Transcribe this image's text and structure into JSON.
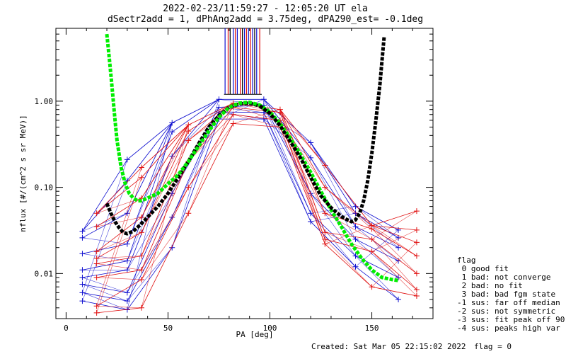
{
  "chart_data": {
    "type": "line",
    "title": "2022-02-23/11:59:27 - 12:05:20 UT ela",
    "subtitle": "dSectr2add = 1, dPhAng2add = 3.75deg, dPA290_est=  -0.1deg",
    "xlabel": "PA [deg]",
    "ylabel": "nflux [#/(cm^2 s sr MeV)]",
    "xlim": [
      -5,
      180
    ],
    "ylim": [
      0.003,
      7.0
    ],
    "yscale": "log",
    "xticks": [
      0,
      50,
      100,
      150
    ],
    "xtick_labels": [
      "0",
      "50",
      "100",
      "150"
    ],
    "yticks": [
      0.01,
      0.1,
      1.0
    ],
    "ytick_labels": [
      "0.01",
      "0.10",
      "1.00"
    ],
    "grid": false,
    "series": [
      {
        "color": "#000000",
        "style": "thick-dashed",
        "x": [
          20,
          22,
          24,
          26,
          28,
          30,
          33,
          36,
          40,
          45,
          50,
          55,
          60,
          65,
          70,
          75,
          80,
          85,
          90,
          95,
          100
        ],
        "y": [
          0.065,
          0.05,
          0.04,
          0.034,
          0.03,
          0.029,
          0.031,
          0.036,
          0.045,
          0.06,
          0.085,
          0.13,
          0.2,
          0.32,
          0.5,
          0.68,
          0.85,
          0.93,
          0.95,
          0.88,
          0.72
        ]
      },
      {
        "color": "#00ee00",
        "style": "thick-dashed",
        "x": [
          20,
          21,
          22,
          23,
          24,
          25,
          27,
          29,
          31,
          33,
          35,
          37,
          40,
          45,
          50,
          55,
          60,
          65,
          70,
          75,
          80,
          85,
          90,
          95,
          100,
          105,
          110,
          115,
          120,
          125,
          130,
          135,
          140,
          145,
          150,
          155,
          160,
          163
        ],
        "y": [
          6.0,
          3.5,
          2.0,
          1.1,
          0.6,
          0.35,
          0.17,
          0.11,
          0.085,
          0.075,
          0.07,
          0.07,
          0.075,
          0.085,
          0.11,
          0.14,
          0.2,
          0.3,
          0.45,
          0.65,
          0.85,
          0.95,
          0.97,
          0.9,
          0.75,
          0.55,
          0.37,
          0.24,
          0.15,
          0.09,
          0.055,
          0.035,
          0.022,
          0.015,
          0.011,
          0.009,
          0.0085,
          0.0083
        ]
      },
      {
        "color": "#000000",
        "style": "thick-dashed",
        "x": [
          95,
          100,
          105,
          110,
          115,
          120,
          125,
          130,
          135,
          138,
          140,
          142,
          144,
          146,
          148,
          150,
          152,
          154,
          155,
          156
        ],
        "y": [
          0.88,
          0.72,
          0.52,
          0.34,
          0.22,
          0.13,
          0.08,
          0.058,
          0.046,
          0.042,
          0.04,
          0.042,
          0.05,
          0.07,
          0.12,
          0.25,
          0.6,
          1.6,
          3.0,
          5.5
        ]
      }
    ],
    "scatter_series": [
      {
        "color": "#1010d0",
        "marker": "+",
        "points": [
          [
            8,
            0.0048
          ],
          [
            8,
            0.006
          ],
          [
            8,
            0.0075
          ],
          [
            8,
            0.009
          ],
          [
            8,
            0.011
          ],
          [
            8,
            0.017
          ],
          [
            8,
            0.026
          ],
          [
            8,
            0.031
          ],
          [
            30,
            0.0038
          ],
          [
            30,
            0.0048
          ],
          [
            30,
            0.006
          ],
          [
            30,
            0.011
          ],
          [
            30,
            0.014
          ],
          [
            30,
            0.022
          ],
          [
            30,
            0.05
          ],
          [
            30,
            0.12
          ],
          [
            30,
            0.21
          ],
          [
            52,
            0.02
          ],
          [
            52,
            0.045
          ],
          [
            52,
            0.085
          ],
          [
            52,
            0.23
          ],
          [
            52,
            0.44
          ],
          [
            52,
            0.56
          ],
          [
            75,
            0.62
          ],
          [
            75,
            0.75
          ],
          [
            75,
            0.85
          ],
          [
            75,
            1.05
          ],
          [
            97,
            0.62
          ],
          [
            97,
            0.74
          ],
          [
            97,
            0.9
          ],
          [
            97,
            1.05
          ],
          [
            120,
            0.04
          ],
          [
            120,
            0.05
          ],
          [
            120,
            0.085
          ],
          [
            120,
            0.22
          ],
          [
            120,
            0.33
          ],
          [
            142,
            0.06
          ],
          [
            142,
            0.05
          ],
          [
            142,
            0.035
          ],
          [
            142,
            0.025
          ],
          [
            142,
            0.016
          ],
          [
            142,
            0.012
          ],
          [
            163,
            0.005
          ],
          [
            163,
            0.009
          ],
          [
            163,
            0.014
          ],
          [
            163,
            0.02
          ],
          [
            163,
            0.026
          ],
          [
            163,
            0.032
          ]
        ]
      },
      {
        "color": "#e01010",
        "marker": "+",
        "points": [
          [
            15,
            0.0035
          ],
          [
            15,
            0.0042
          ],
          [
            15,
            0.009
          ],
          [
            15,
            0.013
          ],
          [
            15,
            0.015
          ],
          [
            15,
            0.018
          ],
          [
            15,
            0.035
          ],
          [
            15,
            0.05
          ],
          [
            37,
            0.004
          ],
          [
            37,
            0.0085
          ],
          [
            37,
            0.011
          ],
          [
            37,
            0.016
          ],
          [
            37,
            0.03
          ],
          [
            37,
            0.045
          ],
          [
            37,
            0.075
          ],
          [
            37,
            0.13
          ],
          [
            37,
            0.17
          ],
          [
            60,
            0.05
          ],
          [
            60,
            0.1
          ],
          [
            60,
            0.2
          ],
          [
            60,
            0.35
          ],
          [
            60,
            0.45
          ],
          [
            60,
            0.53
          ],
          [
            82,
            0.55
          ],
          [
            82,
            0.7
          ],
          [
            82,
            0.85
          ],
          [
            82,
            0.95
          ],
          [
            105,
            0.5
          ],
          [
            105,
            0.6
          ],
          [
            105,
            0.74
          ],
          [
            105,
            0.8
          ],
          [
            127,
            0.022
          ],
          [
            127,
            0.025
          ],
          [
            127,
            0.03
          ],
          [
            127,
            0.05
          ],
          [
            127,
            0.1
          ],
          [
            127,
            0.18
          ],
          [
            150,
            0.007
          ],
          [
            150,
            0.018
          ],
          [
            150,
            0.025
          ],
          [
            150,
            0.033
          ],
          [
            150,
            0.036
          ],
          [
            172,
            0.0055
          ],
          [
            172,
            0.0065
          ],
          [
            172,
            0.01
          ],
          [
            172,
            0.016
          ],
          [
            172,
            0.023
          ],
          [
            172,
            0.032
          ],
          [
            172,
            0.053
          ]
        ]
      }
    ],
    "legend": {
      "title": "flag",
      "placement": "right",
      "entries": [
        " 0 good fit",
        " 1 bad: not converge",
        " 2 bad: no fit",
        " 3 bad: bad fgm state",
        "-1 sus: far off median",
        "-2 sus: not symmetric",
        "-3 sus: fit peak off 90",
        "-4 sus: peaks high var"
      ]
    },
    "footer_created": "Created: Sat Mar 05 22:15:02 2022",
    "footer_flag": "flag = 0"
  }
}
